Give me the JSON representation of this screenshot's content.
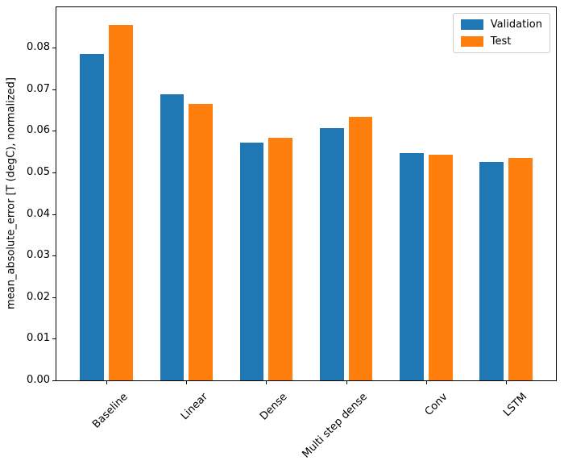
{
  "figure": {
    "background": "#ffffff",
    "spine_color": "#000000",
    "text_color": "#000000"
  },
  "chart_data": {
    "type": "bar",
    "title": "",
    "xlabel": "",
    "ylabel": "mean_absolute_error [T (degC), normalized]",
    "categories": [
      "Baseline",
      "Linear",
      "Dense",
      "Multi step dense",
      "Conv",
      "LSTM"
    ],
    "series": [
      {
        "name": "Validation",
        "color": "#1f77b4",
        "values": [
          0.0785,
          0.0688,
          0.0572,
          0.0607,
          0.0546,
          0.0525
        ]
      },
      {
        "name": "Test",
        "color": "#ff7f0e",
        "values": [
          0.0854,
          0.0665,
          0.0583,
          0.0634,
          0.0543,
          0.0535
        ]
      }
    ],
    "ylim": [
      0,
      0.0897
    ],
    "yticks": [
      0.0,
      0.01,
      0.02,
      0.03,
      0.04,
      0.05,
      0.06,
      0.07,
      0.08
    ],
    "ytick_labels": [
      "0.00",
      "0.01",
      "0.02",
      "0.03",
      "0.04",
      "0.05",
      "0.06",
      "0.07",
      "0.08"
    ],
    "xtick_rotation": 45,
    "grid": false,
    "bar_width_frac": 0.3,
    "bar_offset_frac": 0.18,
    "legend": {
      "position": "upper right",
      "entries": [
        "Validation",
        "Test"
      ]
    }
  }
}
